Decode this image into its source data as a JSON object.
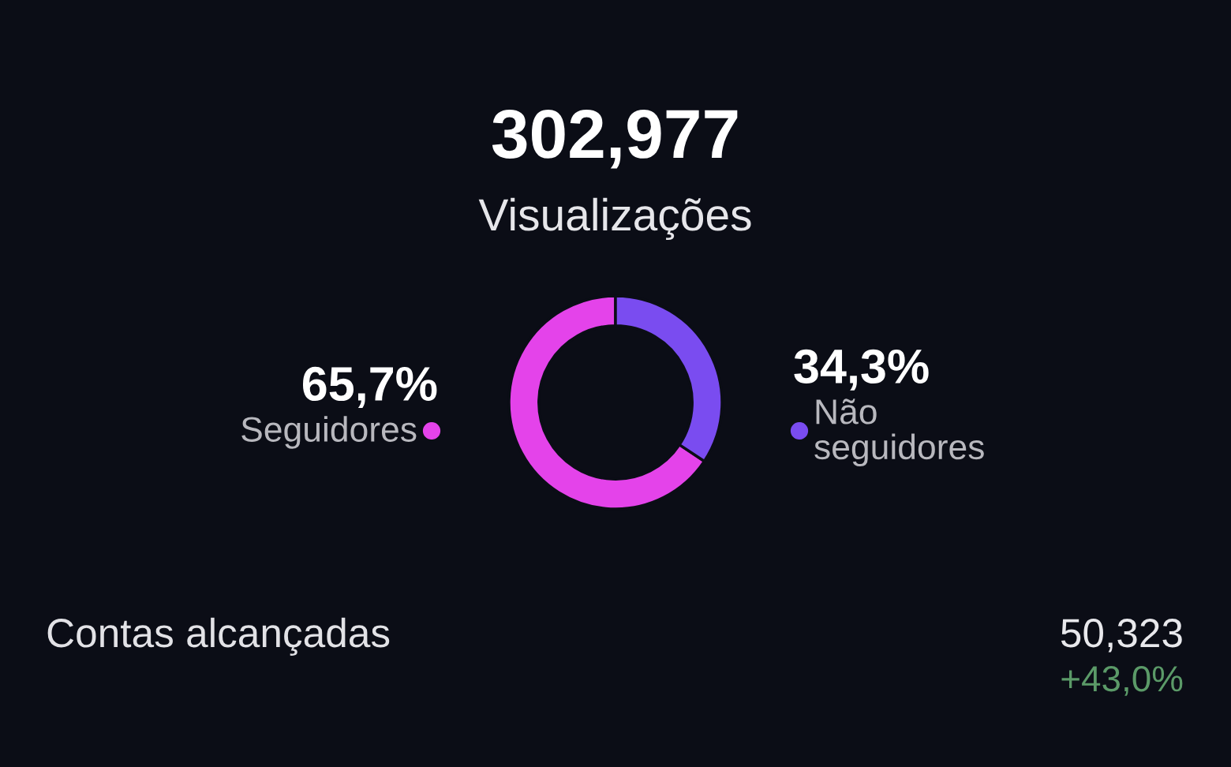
{
  "chart_data": {
    "type": "donut",
    "title": "302,977",
    "subtitle": "Visualizações",
    "categories": [
      "Seguidores",
      "Não\nseguidores"
    ],
    "values": [
      65.7,
      34.3
    ],
    "colors": [
      "#e443ea",
      "#7a4cf0"
    ],
    "value_labels": [
      "65,7%",
      "34,3%"
    ],
    "annotations": [
      "Contas alcançadas",
      "50,323",
      "+43,0%"
    ]
  }
}
